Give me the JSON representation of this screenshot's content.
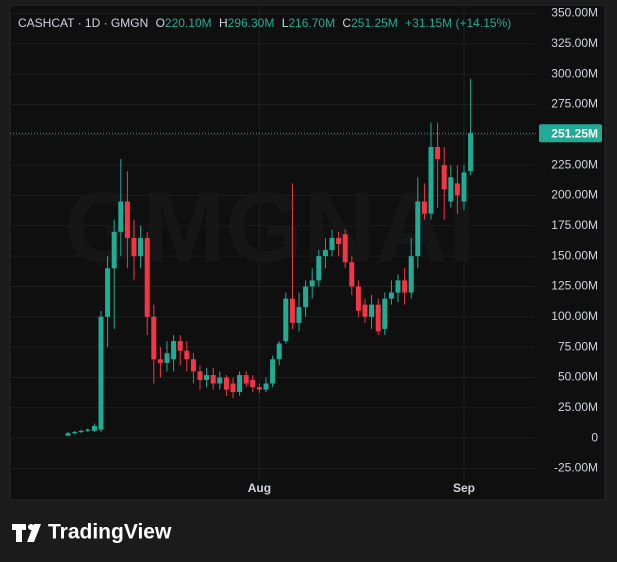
{
  "chart_data": {
    "type": "candlestick",
    "ohlc_legend": {
      "symbol": "CASHCAT · 1D · GMGN",
      "open_label": "O",
      "open": "220.10M",
      "high_label": "H",
      "high": "296.30M",
      "low_label": "L",
      "low": "216.70M",
      "close_label": "C",
      "close": "251.25M",
      "change": "+31.15M (+14.15%)"
    },
    "watermark": "GMGNAI",
    "last_price_label": "251.25M",
    "categories": [
      null,
      null,
      null,
      null,
      null,
      null,
      null,
      null,
      null,
      null,
      null,
      null,
      null,
      null,
      null,
      null,
      null,
      null,
      null,
      null,
      null,
      null,
      null,
      null,
      null,
      null,
      null,
      null,
      null,
      "Aug",
      null,
      null,
      null,
      null,
      null,
      null,
      null,
      null,
      null,
      null,
      null,
      null,
      null,
      null,
      null,
      null,
      null,
      null,
      null,
      null,
      null,
      null,
      null,
      null,
      null,
      null,
      null,
      null,
      null,
      null,
      "Sep",
      null
    ],
    "open": [
      2,
      4,
      5,
      6,
      6,
      7,
      100,
      140,
      170,
      195,
      165,
      150,
      165,
      100,
      65,
      62,
      65,
      80,
      72,
      65,
      55,
      48,
      52,
      45,
      50,
      45,
      38,
      52,
      48,
      42,
      40,
      45,
      65,
      80,
      115,
      95,
      108,
      125,
      130,
      150,
      155,
      165,
      168,
      145,
      125,
      110,
      100,
      110,
      90,
      115,
      120,
      130,
      120,
      150,
      195,
      185,
      240,
      225,
      195,
      210,
      195,
      220.1
    ],
    "high": [
      5,
      6,
      7,
      8,
      12,
      105,
      150,
      180,
      230,
      220,
      180,
      175,
      170,
      110,
      75,
      80,
      85,
      85,
      80,
      70,
      60,
      58,
      58,
      55,
      52,
      50,
      55,
      55,
      52,
      45,
      50,
      68,
      80,
      120,
      210,
      120,
      130,
      140,
      155,
      165,
      172,
      170,
      172,
      150,
      130,
      115,
      118,
      115,
      120,
      130,
      135,
      140,
      165,
      215,
      210,
      260,
      260,
      240,
      225,
      225,
      225,
      296.3
    ],
    "low": [
      2,
      3,
      4,
      5,
      5,
      5,
      75,
      90,
      150,
      140,
      130,
      140,
      85,
      45,
      50,
      55,
      55,
      60,
      55,
      45,
      40,
      42,
      40,
      40,
      35,
      33,
      35,
      42,
      38,
      37,
      38,
      42,
      60,
      78,
      90,
      88,
      100,
      115,
      125,
      140,
      150,
      150,
      140,
      118,
      100,
      95,
      90,
      85,
      85,
      110,
      112,
      110,
      115,
      140,
      180,
      180,
      190,
      180,
      190,
      185,
      188,
      216.7
    ],
    "close": [
      4,
      5,
      6,
      7,
      10,
      100,
      140,
      170,
      195,
      165,
      150,
      165,
      100,
      65,
      62,
      70,
      80,
      72,
      65,
      55,
      48,
      52,
      45,
      50,
      40,
      38,
      52,
      45,
      42,
      40,
      45,
      65,
      78,
      115,
      95,
      108,
      125,
      130,
      150,
      155,
      165,
      160,
      145,
      125,
      105,
      100,
      110,
      88,
      115,
      120,
      130,
      120,
      150,
      195,
      185,
      240,
      230,
      205,
      215,
      200,
      219,
      251.25
    ],
    "up_color": "#22ab94",
    "down_color": "#f23645",
    "ylim": [
      -51,
      357
    ],
    "yticks": [
      {
        "value": -25,
        "label": "-25.00M"
      },
      0,
      {
        "value": 25,
        "label": "25.00M"
      },
      {
        "value": 50,
        "label": "50.00M"
      },
      {
        "value": 75,
        "label": "75.00M"
      },
      {
        "value": 100,
        "label": "100.00M"
      },
      {
        "value": 125,
        "label": "125.00M"
      },
      {
        "value": 150,
        "label": "150.00M"
      },
      {
        "value": 175,
        "label": "175.00M"
      },
      {
        "value": 200,
        "label": "200.00M"
      },
      {
        "value": 225,
        "label": "225.00M"
      },
      {
        "value": 250,
        "label": "250.00M"
      },
      {
        "value": 275,
        "label": "275.00M"
      },
      {
        "value": 300,
        "label": "300.00M"
      },
      {
        "value": 325,
        "label": "325.00M"
      },
      {
        "value": 350,
        "label": "350.00M"
      }
    ],
    "grid": true
  },
  "branding": "TradingView"
}
